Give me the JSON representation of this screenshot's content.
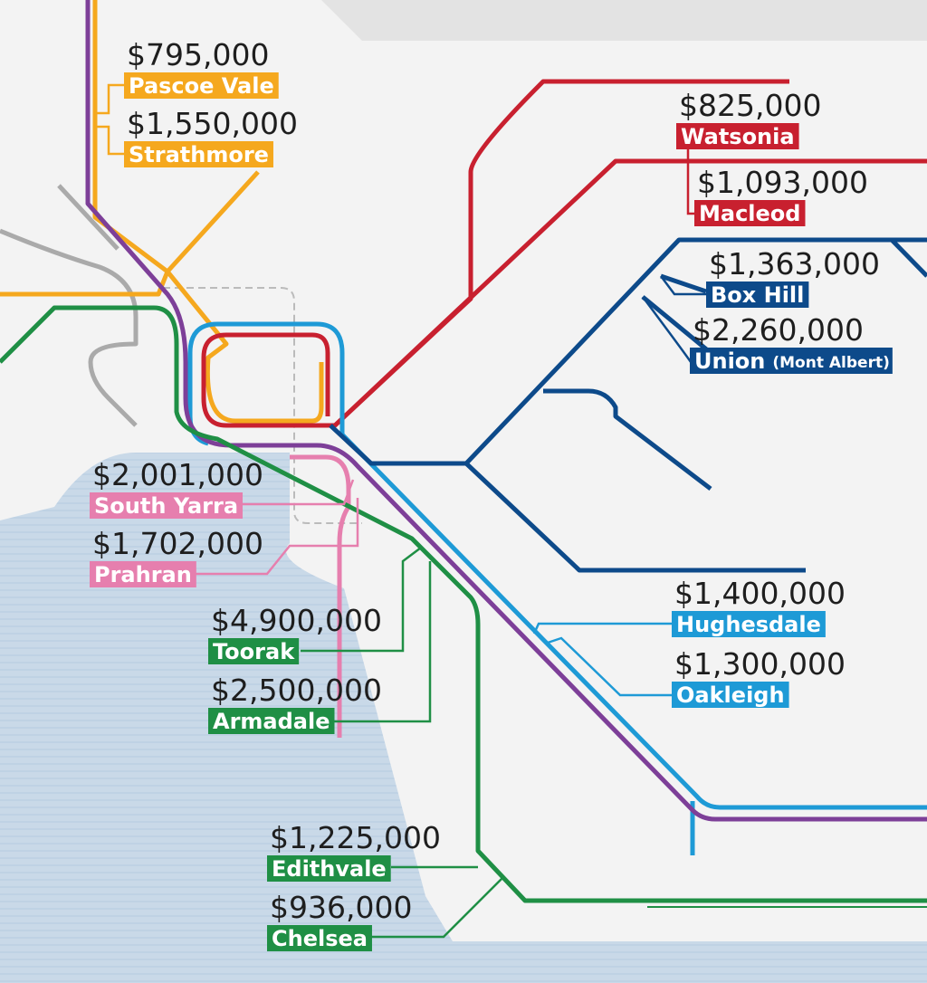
{
  "stations": [
    {
      "price": "$795,000",
      "name": "Pascoe Vale",
      "color": "#f5a81e"
    },
    {
      "price": "$1,550,000",
      "name": "Strathmore",
      "color": "#f5a81e"
    },
    {
      "price": "$825,000",
      "name": "Watsonia",
      "color": "#c8202f"
    },
    {
      "price": "$1,093,000",
      "name": "Macleod",
      "color": "#c8202f"
    },
    {
      "price": "$1,363,000",
      "name": "Box Hill",
      "color": "#0d4a8a"
    },
    {
      "price": "$2,260,000",
      "name": "Union",
      "note": "(Mont Albert)",
      "color": "#0d4a8a"
    },
    {
      "price": "$2,001,000",
      "name": "South Yarra",
      "color": "#e67fae"
    },
    {
      "price": "$1,702,000",
      "name": "Prahran",
      "color": "#e67fae"
    },
    {
      "price": "$4,900,000",
      "name": "Toorak",
      "color": "#1f8f45"
    },
    {
      "price": "$2,500,000",
      "name": "Armadale",
      "color": "#1f8f45"
    },
    {
      "price": "$1,400,000",
      "name": "Hughesdale",
      "color": "#1e9ad6"
    },
    {
      "price": "$1,300,000",
      "name": "Oakleigh",
      "color": "#1e9ad6"
    },
    {
      "price": "$1,225,000",
      "name": "Edithvale",
      "color": "#1f8f45"
    },
    {
      "price": "$936,000",
      "name": "Chelsea",
      "color": "#1f8f45"
    }
  ]
}
